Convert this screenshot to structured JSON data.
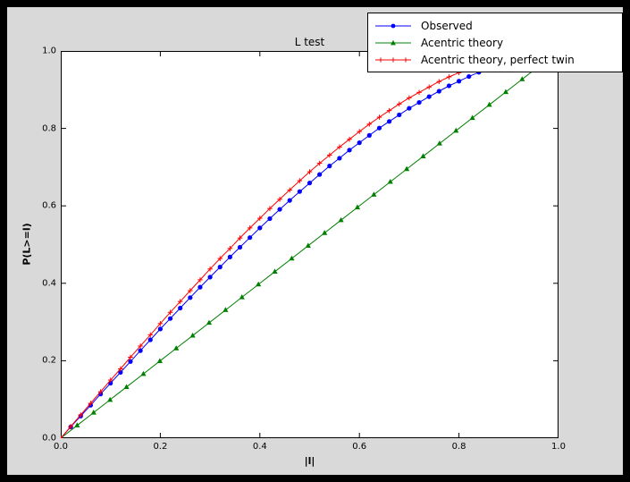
{
  "colors": {
    "frame_background": "#000000",
    "figure_background": "#d9d9d9",
    "plot_background": "#ffffff",
    "axis_color": "#000000",
    "observed": "#0000ff",
    "acentric_theory": "#008000",
    "perfect_twin": "#ff0000"
  },
  "chart_data": {
    "type": "line",
    "title": "L test",
    "xlabel": "|l|",
    "ylabel": "P(L>=l)",
    "xlim": [
      0.0,
      1.0
    ],
    "ylim": [
      0.0,
      1.0
    ],
    "grid": false,
    "legend_position": "figure top-right, overlapping plot corner",
    "x_ticks": [
      "0.0",
      "0.2",
      "0.4",
      "0.6",
      "0.8",
      "1.0"
    ],
    "y_ticks": [
      "0.0",
      "0.2",
      "0.4",
      "0.6",
      "0.8",
      "1.0"
    ],
    "series": [
      {
        "name": "Observed",
        "color": "#0000ff",
        "marker": "circle",
        "x": [
          0.0,
          0.02,
          0.04,
          0.06,
          0.08,
          0.1,
          0.12,
          0.14,
          0.16,
          0.18,
          0.2,
          0.22,
          0.24,
          0.26,
          0.28,
          0.3,
          0.32,
          0.34,
          0.36,
          0.38,
          0.4,
          0.42,
          0.44,
          0.46,
          0.48,
          0.5,
          0.52,
          0.54,
          0.56,
          0.58,
          0.6,
          0.62,
          0.64,
          0.66,
          0.68,
          0.7,
          0.72,
          0.74,
          0.76,
          0.78,
          0.8,
          0.82,
          0.84,
          0.86
        ],
        "y": [
          0.0,
          0.029,
          0.057,
          0.085,
          0.114,
          0.142,
          0.17,
          0.198,
          0.226,
          0.254,
          0.282,
          0.309,
          0.336,
          0.363,
          0.39,
          0.416,
          0.442,
          0.468,
          0.493,
          0.518,
          0.543,
          0.567,
          0.591,
          0.614,
          0.637,
          0.659,
          0.681,
          0.703,
          0.723,
          0.744,
          0.763,
          0.782,
          0.801,
          0.818,
          0.835,
          0.852,
          0.867,
          0.882,
          0.896,
          0.91,
          0.922,
          0.934,
          0.945,
          0.955
        ]
      },
      {
        "name": "Acentric theory",
        "color": "#008000",
        "marker": "triangle",
        "x": [
          0.0,
          0.033,
          0.066,
          0.099,
          0.132,
          0.166,
          0.199,
          0.232,
          0.265,
          0.298,
          0.331,
          0.364,
          0.397,
          0.43,
          0.464,
          0.497,
          0.53,
          0.563,
          0.596,
          0.629,
          0.662,
          0.695,
          0.728,
          0.761,
          0.794,
          0.827,
          0.861,
          0.894,
          0.927,
          0.96
        ],
        "y": [
          0.0,
          0.033,
          0.066,
          0.099,
          0.132,
          0.166,
          0.199,
          0.232,
          0.265,
          0.298,
          0.331,
          0.364,
          0.397,
          0.43,
          0.464,
          0.497,
          0.53,
          0.563,
          0.596,
          0.629,
          0.662,
          0.695,
          0.728,
          0.761,
          0.794,
          0.827,
          0.861,
          0.894,
          0.927,
          0.96
        ]
      },
      {
        "name": "Acentric theory, perfect twin",
        "color": "#ff0000",
        "marker": "plus",
        "x": [
          0.0,
          0.02,
          0.04,
          0.06,
          0.08,
          0.1,
          0.12,
          0.14,
          0.16,
          0.18,
          0.2,
          0.22,
          0.24,
          0.26,
          0.28,
          0.3,
          0.32,
          0.34,
          0.36,
          0.38,
          0.4,
          0.42,
          0.44,
          0.46,
          0.48,
          0.5,
          0.52,
          0.54,
          0.56,
          0.58,
          0.6,
          0.62,
          0.64,
          0.66,
          0.68,
          0.7,
          0.72,
          0.74,
          0.76,
          0.78,
          0.8,
          0.82,
          0.84,
          0.86
        ],
        "y": [
          0.0,
          0.03,
          0.06,
          0.09,
          0.12,
          0.15,
          0.179,
          0.209,
          0.238,
          0.267,
          0.296,
          0.325,
          0.353,
          0.381,
          0.409,
          0.437,
          0.464,
          0.49,
          0.517,
          0.543,
          0.568,
          0.593,
          0.617,
          0.641,
          0.665,
          0.688,
          0.71,
          0.731,
          0.752,
          0.772,
          0.792,
          0.811,
          0.829,
          0.846,
          0.863,
          0.879,
          0.893,
          0.907,
          0.921,
          0.933,
          0.944,
          0.954,
          0.964,
          0.972
        ]
      }
    ]
  }
}
